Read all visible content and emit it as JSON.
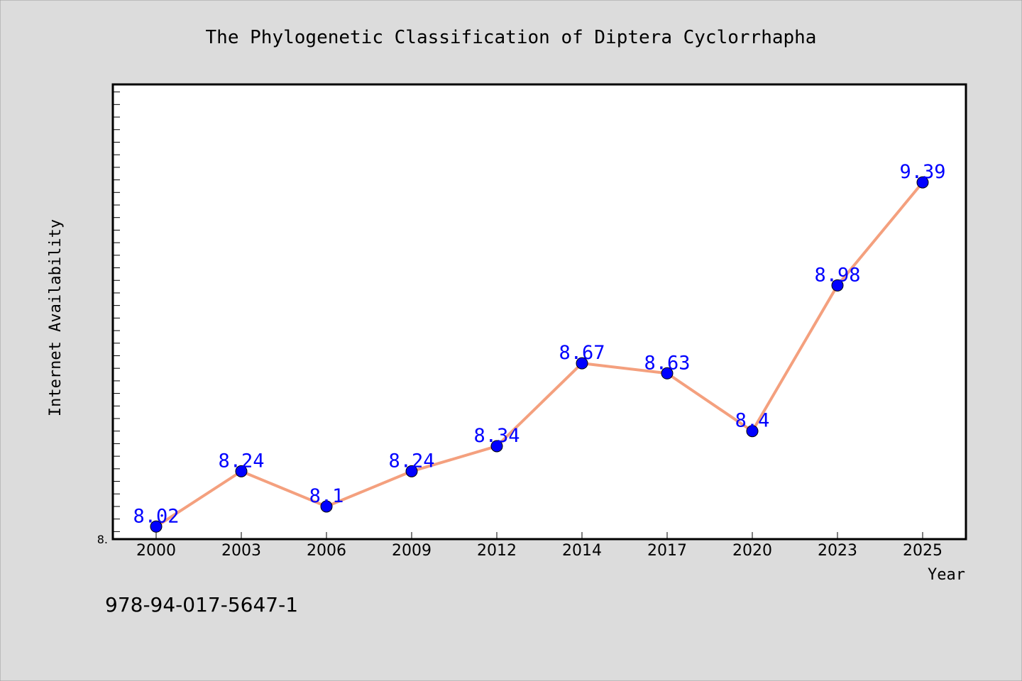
{
  "footer_code": "978-94-017-5647-1",
  "chart_data": {
    "type": "line",
    "title": "The Phylogenetic Classification of Diptera Cyclorrhapha",
    "xlabel": "Year",
    "ylabel": "Internet Availability",
    "categories": [
      "2000",
      "2003",
      "2006",
      "2009",
      "2012",
      "2014",
      "2017",
      "2020",
      "2023",
      "2025"
    ],
    "values": [
      8.02,
      8.24,
      8.1,
      8.24,
      8.34,
      8.67,
      8.63,
      8.4,
      8.98,
      9.39
    ],
    "data_labels": [
      "8.02",
      "8.24",
      "8.1",
      "8.24",
      "8.34",
      "8.67",
      "8.63",
      "8.4",
      "8.98",
      "9.39"
    ],
    "y_tick_label": "8.",
    "ylim": [
      7.97,
      9.78
    ],
    "y_minor_tick_step": 0.1,
    "grid": false,
    "legend": "none",
    "colors": {
      "background": "#dcdcdc",
      "plot_background": "#ffffff",
      "line": "#f4a07e",
      "marker": "#0000ff",
      "data_label": "#0000ff",
      "text": "#000000"
    }
  }
}
